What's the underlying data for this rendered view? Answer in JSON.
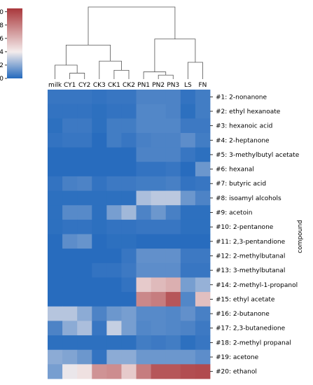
{
  "chart_data": {
    "type": "heatmap",
    "subtype": "clustermap",
    "columns": [
      "milk",
      "CY1",
      "CY2",
      "CK3",
      "CK1",
      "CK2",
      "PN1",
      "PN2",
      "PN3",
      "LS",
      "FN"
    ],
    "rows": [
      "#1: 2-nonanone",
      "#2: ethyl hexanoate",
      "#3: hexanoic acid",
      "#4: 2-heptanone",
      "#5: 3-methylbutyl acetate",
      "#6: hexanal",
      "#7: butyric acid",
      "#8: isoamyl alcohols",
      "#9: acetoin",
      "#10: 2-pentanone",
      "#11: 2,3-pentandione",
      "#12: 2-methylbutanal",
      "#13: 3-methylbutanal",
      "#14: 2-methyl-1-propanol",
      "#15: ethyl acetate",
      "#16: 2-butanone",
      "#17: 2,3-butanedione",
      "#18: 2-methyl propanal",
      "#19: acetone",
      "#20: ethanol"
    ],
    "values": [
      [
        0.4,
        0.4,
        0.4,
        0.3,
        0.4,
        0.4,
        0.8,
        0.8,
        0.8,
        0.3,
        0.6
      ],
      [
        0.3,
        0.3,
        0.3,
        0.2,
        0.3,
        0.3,
        0.9,
        0.9,
        0.8,
        0.2,
        0.6
      ],
      [
        0.2,
        0.5,
        0.5,
        0.2,
        0.6,
        0.6,
        0.9,
        0.9,
        0.9,
        0.5,
        0.5
      ],
      [
        0.3,
        0.4,
        0.4,
        0.1,
        0.6,
        0.4,
        0.7,
        0.8,
        0.8,
        1.1,
        0.6
      ],
      [
        0.1,
        0.1,
        0.1,
        0.1,
        0.1,
        0.1,
        0.8,
        0.8,
        0.8,
        0.4,
        0.2
      ],
      [
        0.1,
        0.1,
        0.1,
        0.1,
        0.1,
        0.1,
        0.3,
        0.3,
        0.4,
        0.1,
        1.4
      ],
      [
        0.3,
        0.7,
        0.8,
        0.3,
        0.5,
        0.5,
        0.6,
        0.6,
        0.7,
        0.3,
        0.4
      ],
      [
        0.2,
        0.2,
        0.2,
        0.2,
        0.2,
        0.2,
        2.6,
        2.9,
        2.9,
        1.4,
        0.8
      ],
      [
        0.2,
        1.0,
        1.0,
        0.2,
        1.6,
        2.4,
        0.8,
        1.4,
        0.7,
        0.2,
        0.2
      ],
      [
        0.2,
        0.3,
        0.3,
        0.2,
        0.3,
        0.3,
        0.4,
        0.4,
        0.4,
        0.2,
        0.2
      ],
      [
        0.1,
        1.1,
        1.3,
        0.1,
        0.2,
        0.2,
        0.1,
        0.1,
        0.1,
        0.1,
        0.1
      ],
      [
        0.1,
        0.1,
        0.1,
        0.1,
        0.1,
        0.4,
        1.2,
        1.2,
        1.2,
        0.5,
        0.5
      ],
      [
        0.1,
        0.1,
        0.1,
        0.3,
        0.3,
        0.5,
        1.1,
        1.1,
        1.1,
        0.4,
        0.4
      ],
      [
        0.1,
        0.1,
        0.1,
        0.1,
        0.1,
        0.3,
        5.2,
        5.8,
        6.2,
        1.6,
        2.2
      ],
      [
        0.1,
        0.1,
        0.1,
        0.1,
        0.1,
        0.1,
        7.6,
        8.0,
        9.4,
        0.9,
        5.6
      ],
      [
        2.8,
        2.8,
        2.0,
        0.8,
        1.4,
        1.6,
        1.0,
        1.0,
        0.9,
        1.2,
        0.7
      ],
      [
        0.8,
        2.0,
        2.6,
        0.4,
        3.1,
        1.6,
        0.9,
        1.0,
        0.9,
        0.8,
        0.5
      ],
      [
        0.2,
        0.2,
        0.2,
        0.2,
        0.2,
        0.2,
        0.6,
        0.5,
        0.6,
        0.2,
        0.4
      ],
      [
        2.0,
        1.8,
        1.4,
        0.3,
        2.0,
        2.0,
        1.4,
        1.4,
        1.4,
        1.4,
        1.1
      ],
      [
        1.6,
        3.8,
        4.4,
        7.2,
        7.4,
        5.2,
        8.0,
        9.4,
        9.4,
        9.7,
        9.8
      ]
    ],
    "colorbar": {
      "min": 0,
      "max": 10.5,
      "ticks": [
        0,
        2,
        4,
        6,
        8,
        10
      ],
      "colormap": "vlag",
      "low_color": "#2369bd",
      "mid_color": "#f4ecec",
      "high_color": "#a9373b"
    },
    "ylabel": "compound",
    "dendrogram": {
      "leaf_order": [
        "milk",
        "CY1",
        "CY2",
        "CK3",
        "CK1",
        "CK2",
        "PN1",
        "PN2",
        "PN3",
        "LS",
        "FN"
      ],
      "merges": [
        [
          "CY1",
          "CY2",
          0.15
        ],
        [
          "CK1",
          "CK2",
          0.22
        ],
        [
          "PN2",
          "PN3",
          0.1
        ],
        [
          "PN1",
          "PN2+PN3",
          0.18
        ],
        [
          "LS",
          "FN",
          0.42
        ],
        [
          "milk",
          "CY1+CY2",
          0.35
        ],
        [
          "CK3",
          "CK1+CK2",
          0.45
        ],
        [
          "milk-CY",
          "CK",
          0.85
        ],
        [
          "PN",
          "LS+FN",
          1.0
        ],
        [
          "left",
          "right",
          1.8
        ]
      ]
    }
  }
}
